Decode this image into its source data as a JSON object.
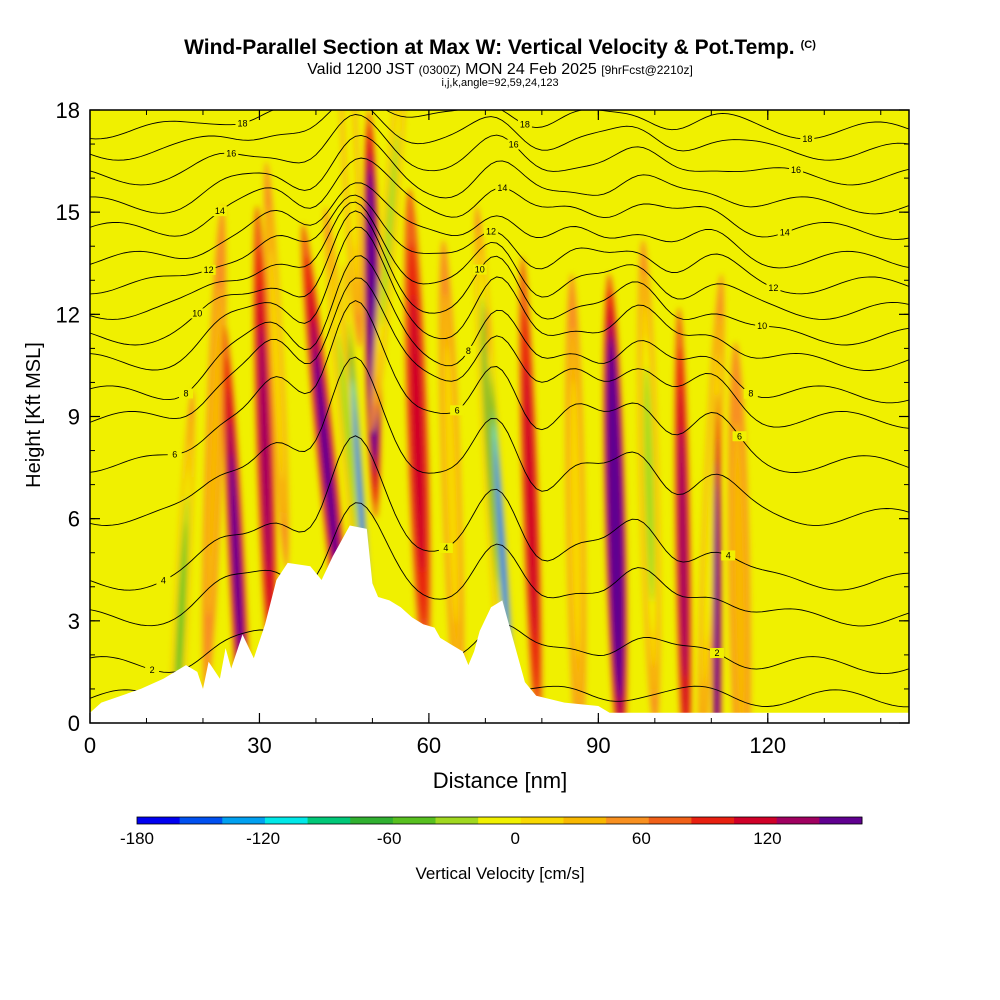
{
  "title": {
    "main": "Wind-Parallel Section at Max W: Vertical Velocity & Pot.Temp.",
    "mark": "(C)",
    "valid_prefix": "Valid 1200 JST",
    "valid_z": "(0300Z)",
    "valid_date": "MON 24 Feb 2025",
    "forecast": "[9hrFcst@2210z]",
    "ijk": "i,j,k,angle=92,59,24,123"
  },
  "chart_data": {
    "type": "heatmap",
    "xlabel": "Distance [nm]",
    "ylabel": "Height [Kft MSL]",
    "xlim": [
      0,
      145
    ],
    "ylim": [
      0,
      18
    ],
    "x_ticks": [
      "0",
      "30",
      "60",
      "90",
      "120"
    ],
    "y_ticks": [
      "0",
      "3",
      "6",
      "9",
      "12",
      "15",
      "18"
    ],
    "colorbar": {
      "label": "Vertical Velocity [cm/s]",
      "range": [
        -180,
        150
      ],
      "step": 15,
      "tick_labels": [
        "-180",
        "-120",
        "-60",
        "0",
        "60",
        "120"
      ],
      "colors": [
        "#0000f0",
        "#0050f0",
        "#00a0f0",
        "#00e8e8",
        "#00c878",
        "#30b030",
        "#58c020",
        "#a0d820",
        "#f0f000",
        "#f8d800",
        "#f8b800",
        "#f89020",
        "#f06018",
        "#e82010",
        "#d00028",
        "#a00060",
        "#600090"
      ]
    },
    "terrain": [
      [
        0,
        0.3
      ],
      [
        2,
        0.6
      ],
      [
        9,
        1.0
      ],
      [
        13,
        1.3
      ],
      [
        17,
        1.7
      ],
      [
        19,
        1.5
      ],
      [
        20,
        1.0
      ],
      [
        21,
        1.8
      ],
      [
        23,
        1.3
      ],
      [
        24,
        2.2
      ],
      [
        25,
        1.6
      ],
      [
        27,
        2.6
      ],
      [
        29,
        1.9
      ],
      [
        31,
        2.9
      ],
      [
        33,
        4.2
      ],
      [
        35,
        4.7
      ],
      [
        39,
        4.6
      ],
      [
        41,
        4.2
      ],
      [
        43,
        4.9
      ],
      [
        46,
        5.8
      ],
      [
        49,
        5.7
      ],
      [
        50,
        4.1
      ],
      [
        51,
        3.7
      ],
      [
        53,
        3.6
      ],
      [
        55,
        3.4
      ],
      [
        57,
        3.1
      ],
      [
        59,
        2.9
      ],
      [
        61,
        2.8
      ],
      [
        62,
        2.5
      ],
      [
        64,
        2.3
      ],
      [
        66,
        2.1
      ],
      [
        67,
        1.7
      ],
      [
        68,
        2.1
      ],
      [
        69,
        2.7
      ],
      [
        71,
        3.4
      ],
      [
        73,
        3.6
      ],
      [
        75,
        2.4
      ],
      [
        77,
        1.2
      ],
      [
        79,
        0.8
      ],
      [
        84,
        0.6
      ],
      [
        90,
        0.5
      ],
      [
        92,
        0.3
      ],
      [
        145,
        0.3
      ]
    ],
    "w_bands": [
      {
        "x": 16,
        "z": 2.6,
        "w": -90,
        "tilt": -0.3,
        "hw": 1.2
      },
      {
        "x": 22,
        "z": 8.0,
        "w": -30,
        "tilt": -0.2,
        "hw": 1.5
      },
      {
        "x": 26,
        "z": 4.5,
        "w": 80,
        "tilt": 0.3,
        "hw": 1.4
      },
      {
        "x": 31,
        "z": 8.0,
        "w": 60,
        "tilt": 0.2,
        "hw": 1.5
      },
      {
        "x": 33,
        "z": 10.5,
        "w": -50,
        "tilt": 0.3,
        "hw": 1.2
      },
      {
        "x": 42,
        "z": 7.5,
        "w": 75,
        "tilt": 0.6,
        "hw": 1.6
      },
      {
        "x": 46,
        "z": 8.0,
        "w": -80,
        "tilt": 0.6,
        "hw": 1.3
      },
      {
        "x": 48,
        "z": 6.3,
        "w": -170,
        "tilt": 0.4,
        "hw": 0.8
      },
      {
        "x": 50,
        "z": 12.0,
        "w": 140,
        "tilt": 0.1,
        "hw": 1.4
      },
      {
        "x": 53,
        "z": 14.5,
        "w": -70,
        "tilt": -0.5,
        "hw": 1.2
      },
      {
        "x": 46,
        "z": 17.0,
        "w": -60,
        "tilt": 0.3,
        "hw": 1.4
      },
      {
        "x": 58,
        "z": 8.5,
        "w": 40,
        "tilt": 0.2,
        "hw": 1.8
      },
      {
        "x": 64,
        "z": 7.0,
        "w": -40,
        "tilt": 0.2,
        "hw": 1.6
      },
      {
        "x": 71,
        "z": 8.0,
        "w": -100,
        "tilt": 0.35,
        "hw": 1.4
      },
      {
        "x": 73,
        "z": 5.0,
        "w": -170,
        "tilt": 0.4,
        "hw": 0.9
      },
      {
        "x": 78,
        "z": 6.5,
        "w": 50,
        "tilt": 0.2,
        "hw": 1.4
      },
      {
        "x": 86,
        "z": 6.0,
        "w": -40,
        "tilt": 0.1,
        "hw": 1.6
      },
      {
        "x": 93,
        "z": 6.0,
        "w": 150,
        "tilt": 0.15,
        "hw": 1.8
      },
      {
        "x": 99,
        "z": 7.0,
        "w": -80,
        "tilt": 0.15,
        "hw": 1.6
      },
      {
        "x": 105,
        "z": 5.0,
        "w": 60,
        "tilt": 0.1,
        "hw": 1.3
      },
      {
        "x": 110,
        "z": 6.0,
        "w": -60,
        "tilt": -0.25,
        "hw": 1.4
      },
      {
        "x": 111,
        "z": 2.5,
        "w": 100,
        "tilt": 0.0,
        "hw": 0.8
      },
      {
        "x": 115,
        "z": 4.0,
        "w": -25,
        "tilt": 0.1,
        "hw": 1.8
      }
    ],
    "isentropes": [
      {
        "base": 0.8,
        "amp": 0.15,
        "label": ""
      },
      {
        "base": 2.0,
        "amp": 0.6,
        "label": "2"
      },
      {
        "base": 3.6,
        "amp": 1.0,
        "label": ""
      },
      {
        "base": 4.8,
        "amp": 1.3,
        "label": "4"
      },
      {
        "base": 6.8,
        "amp": 1.5,
        "label": ""
      },
      {
        "base": 8.4,
        "amp": 1.6,
        "label": "6"
      },
      {
        "base": 9.6,
        "amp": 1.4,
        "label": ""
      },
      {
        "base": 10.3,
        "amp": 1.3,
        "label": "8"
      },
      {
        "base": 11.2,
        "amp": 1.2,
        "label": ""
      },
      {
        "base": 11.9,
        "amp": 1.1,
        "label": "10"
      },
      {
        "base": 12.6,
        "amp": 1.0,
        "label": ""
      },
      {
        "base": 13.3,
        "amp": 0.9,
        "label": "12"
      },
      {
        "base": 14.0,
        "amp": 0.8,
        "label": ""
      },
      {
        "base": 14.8,
        "amp": 0.7,
        "label": "14"
      },
      {
        "base": 15.5,
        "amp": 0.6,
        "label": ""
      },
      {
        "base": 16.3,
        "amp": 0.5,
        "label": "16"
      },
      {
        "base": 17.0,
        "amp": 0.45,
        "label": ""
      },
      {
        "base": 17.6,
        "amp": 0.4,
        "label": "18"
      }
    ]
  }
}
